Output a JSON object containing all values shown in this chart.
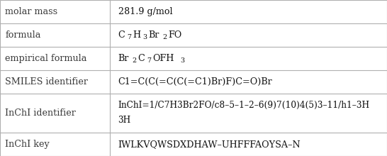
{
  "rows": [
    {
      "label": "molar mass",
      "type": "plain",
      "value": "281.9 g/mol"
    },
    {
      "label": "formula",
      "type": "formula",
      "parts": [
        {
          "t": "C",
          "s": false
        },
        {
          "t": "7",
          "s": true
        },
        {
          "t": "H",
          "s": false
        },
        {
          "t": "3",
          "s": true
        },
        {
          "t": "Br",
          "s": false
        },
        {
          "t": "2",
          "s": true
        },
        {
          "t": "FO",
          "s": false
        }
      ]
    },
    {
      "label": "empirical formula",
      "type": "formula",
      "parts": [
        {
          "t": "Br",
          "s": false
        },
        {
          "t": "2",
          "s": true
        },
        {
          "t": "C",
          "s": false
        },
        {
          "t": "7",
          "s": true
        },
        {
          "t": "OFH",
          "s": false
        },
        {
          "t": "3",
          "s": true
        }
      ]
    },
    {
      "label": "SMILES identifier",
      "type": "plain",
      "value": "C1=C(C(=C(C(=C1)Br)F)C=O)Br"
    },
    {
      "label": "InChI identifier",
      "type": "multiline",
      "lines": [
        "InChI=1/C7H3Br2FO/c8–5–1–2–6(9)7(10)4(5)3–11/h1–3H",
        "3H"
      ]
    },
    {
      "label": "InChI key",
      "type": "plain",
      "value": "IWLKVQWSDXDHAW–UHFFFAOYSA–N"
    }
  ],
  "col_split": 0.283,
  "bg_color": "#ffffff",
  "border_color": "#b0b0b0",
  "label_color": "#3a3a3a",
  "value_color": "#111111",
  "font_size": 9.2,
  "row_heights": [
    1.0,
    1.0,
    1.0,
    1.0,
    1.65,
    1.0
  ]
}
